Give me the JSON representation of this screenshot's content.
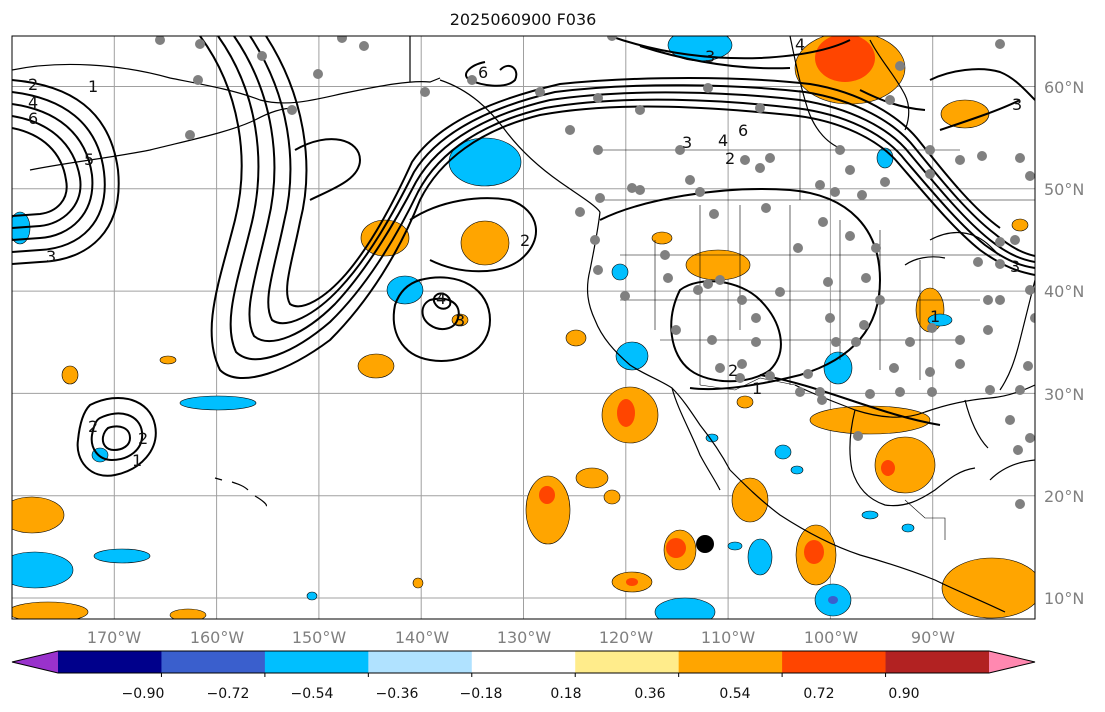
{
  "title": "2025060900 F036",
  "map": {
    "lon_range": [
      -180,
      -80
    ],
    "lat_range": [
      8,
      65
    ],
    "lat_labels": [
      "10°N",
      "20°N",
      "30°N",
      "40°N",
      "50°N",
      "60°N"
    ],
    "lon_labels": [
      "170°W",
      "160°W",
      "150°W",
      "140°W",
      "130°W",
      "120°W",
      "110°W",
      "100°W",
      "90°W"
    ],
    "gridlines": true,
    "contour_labels": [
      "2",
      "4",
      "6",
      "5",
      "3",
      "1",
      "2",
      "4",
      "3",
      "2",
      "6",
      "4",
      "3",
      "2",
      "6",
      "4",
      "3",
      "1",
      "2",
      "3",
      "2",
      "1",
      "3",
      "1"
    ]
  },
  "colorbar": {
    "ticks": [
      "−0.90",
      "−0.72",
      "−0.54",
      "−0.36",
      "−0.18",
      "0.18",
      "0.36",
      "0.54",
      "0.72",
      "0.90"
    ],
    "colors": [
      "#9932cc",
      "#00008b",
      "#3a5fcd",
      "#00bfff",
      "#b0e2ff",
      "#ffffff",
      "#ffec8b",
      "#ffa500",
      "#ff4500",
      "#b22222",
      "#ff88b0"
    ]
  },
  "colors": {
    "land_outline": "#000000",
    "station_dot": "#808080",
    "grid": "#a0a0a0"
  }
}
